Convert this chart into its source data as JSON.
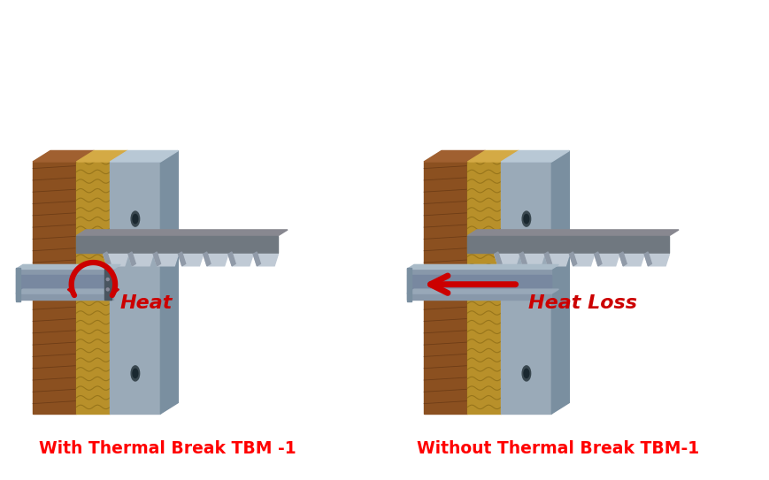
{
  "background_color": "#ffffff",
  "label_left": "With Thermal Break TBM -1",
  "label_right": "Without Thermal Break TBM-1",
  "label_color": "#ff0000",
  "label_fontsize": 13.5,
  "heat_label": "Heat",
  "heat_loss_label": "Heat Loss",
  "arrow_color": "#cc0000",
  "fig_width": 8.69,
  "fig_height": 5.43,
  "steel_light": "#9aaab8",
  "steel_mid": "#7a8fa0",
  "steel_dark": "#5a6e80",
  "steel_top": "#b8c8d5",
  "insulation_main": "#b8902a",
  "insulation_light": "#d4aa45",
  "insulation_dark": "#8a6a15",
  "wood_front": "#8B5020",
  "wood_side": "#6B3810",
  "wood_top": "#a06030",
  "concrete_top": "#888890",
  "concrete_face": "#707880",
  "decking_main": "#909aa8",
  "decking_light": "#c0cad5",
  "bracket_front": "#8898aa",
  "bracket_top": "#aabbc8",
  "bracket_side": "#6878888"
}
